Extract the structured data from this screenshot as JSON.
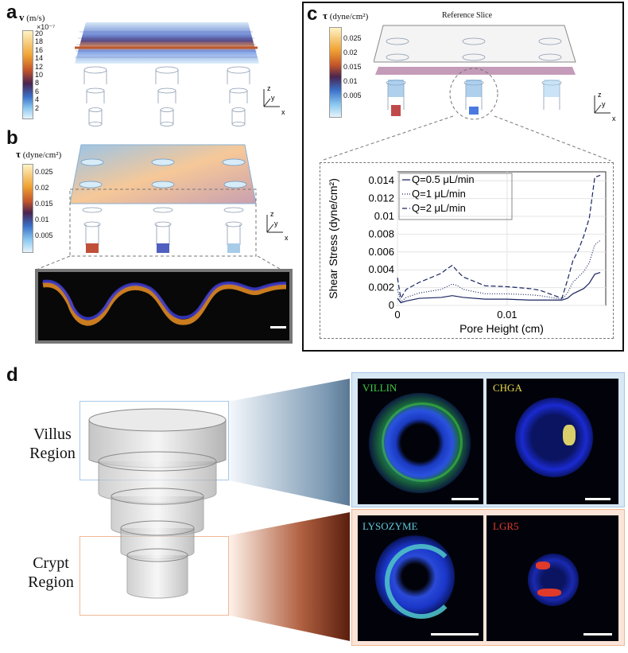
{
  "panels": {
    "a": {
      "label": "a",
      "cb_symbol": "v",
      "cb_units": "(m/s)",
      "cb_exponent": "×10⁻⁷",
      "cb_ticks": [
        "20",
        "18",
        "16",
        "14",
        "12",
        "10",
        "8",
        "6",
        "4",
        "2"
      ],
      "colors": {
        "top": "#fef3c4",
        "upper": "#f0a232",
        "mid": "#5a2a5a",
        "lower": "#5aa0e0",
        "bottom": "#e6f4fb"
      }
    },
    "b": {
      "label": "b",
      "cb_symbol": "τ",
      "cb_units": "(dyne/cm²)",
      "cb_ticks": [
        "0.025",
        "0.02",
        "0.015",
        "0.01",
        "0.005"
      ]
    },
    "c": {
      "label": "c",
      "cb_symbol": "τ",
      "cb_units": "(dyne/cm²)",
      "cb_ticks": [
        "0.025",
        "0.02",
        "0.015",
        "0.01",
        "0.005"
      ],
      "slice_title": "Reference Slice"
    },
    "d": {
      "label": "d",
      "villus_label": [
        "Villus",
        "Region"
      ],
      "crypt_label": [
        "Crypt",
        "Region"
      ],
      "stains": [
        "VILLIN",
        "CHGA",
        "LYSOZYME",
        "LGR5"
      ],
      "stain_colors": {
        "VILLIN": "#3fcc3f",
        "CHGA": "#e8d84a",
        "LYSOZYME": "#5ec8d8",
        "LGR5": "#e03a2a"
      },
      "villus_frame_color": "#a8c8e8",
      "crypt_frame_color": "#f0b898"
    }
  },
  "axes_labels": {
    "z": "z",
    "y": "y",
    "x": "x"
  },
  "chart_data": {
    "type": "line",
    "title": "",
    "xlabel": "Pore Height (cm)",
    "ylabel": "Shear Stress (dyne/cm²)",
    "xlim": [
      0,
      0.019
    ],
    "ylim": [
      0,
      0.015
    ],
    "xticks": [
      "0",
      "0.01"
    ],
    "yticks": [
      "0",
      "0.002",
      "0.004",
      "0.006",
      "0.008",
      "0.01",
      "0.012",
      "0.014"
    ],
    "legend_position": "top-left",
    "grid": true,
    "series": [
      {
        "name": "Q=0.5 μL/min",
        "style": "solid",
        "x": [
          0,
          0.0003,
          0.0008,
          0.002,
          0.004,
          0.005,
          0.006,
          0.008,
          0.01,
          0.012,
          0.013,
          0.015,
          0.0155,
          0.016,
          0.017,
          0.0175,
          0.018,
          0.0185
        ],
        "y": [
          0.0008,
          0.0003,
          0.0005,
          0.0008,
          0.0009,
          0.0011,
          0.0009,
          0.0007,
          0.0007,
          0.0006,
          0.0006,
          0.0006,
          0.0008,
          0.0013,
          0.0019,
          0.0025,
          0.0035,
          0.0037
        ]
      },
      {
        "name": "Q=1 μL/min",
        "style": "dotted",
        "x": [
          0,
          0.0003,
          0.0008,
          0.002,
          0.004,
          0.005,
          0.0055,
          0.006,
          0.008,
          0.01,
          0.012,
          0.013,
          0.015,
          0.0155,
          0.016,
          0.017,
          0.0175,
          0.018,
          0.0185
        ],
        "y": [
          0.0018,
          0.0004,
          0.0009,
          0.0014,
          0.0018,
          0.0024,
          0.0022,
          0.0018,
          0.0013,
          0.0013,
          0.0012,
          0.0011,
          0.0007,
          0.0014,
          0.0026,
          0.0038,
          0.0048,
          0.0068,
          0.0073
        ]
      },
      {
        "name": "Q=2 μL/min",
        "style": "dashed",
        "x": [
          0,
          0.0003,
          0.0008,
          0.002,
          0.004,
          0.0045,
          0.005,
          0.0055,
          0.006,
          0.008,
          0.01,
          0.012,
          0.013,
          0.015,
          0.0155,
          0.016,
          0.0165,
          0.017,
          0.0175,
          0.018,
          0.0185
        ],
        "y": [
          0.0031,
          0.0008,
          0.0018,
          0.0026,
          0.0036,
          0.0041,
          0.0045,
          0.0038,
          0.0032,
          0.0022,
          0.0021,
          0.0019,
          0.0017,
          0.0008,
          0.0028,
          0.005,
          0.0062,
          0.0078,
          0.0098,
          0.0144,
          0.0146
        ]
      }
    ]
  }
}
